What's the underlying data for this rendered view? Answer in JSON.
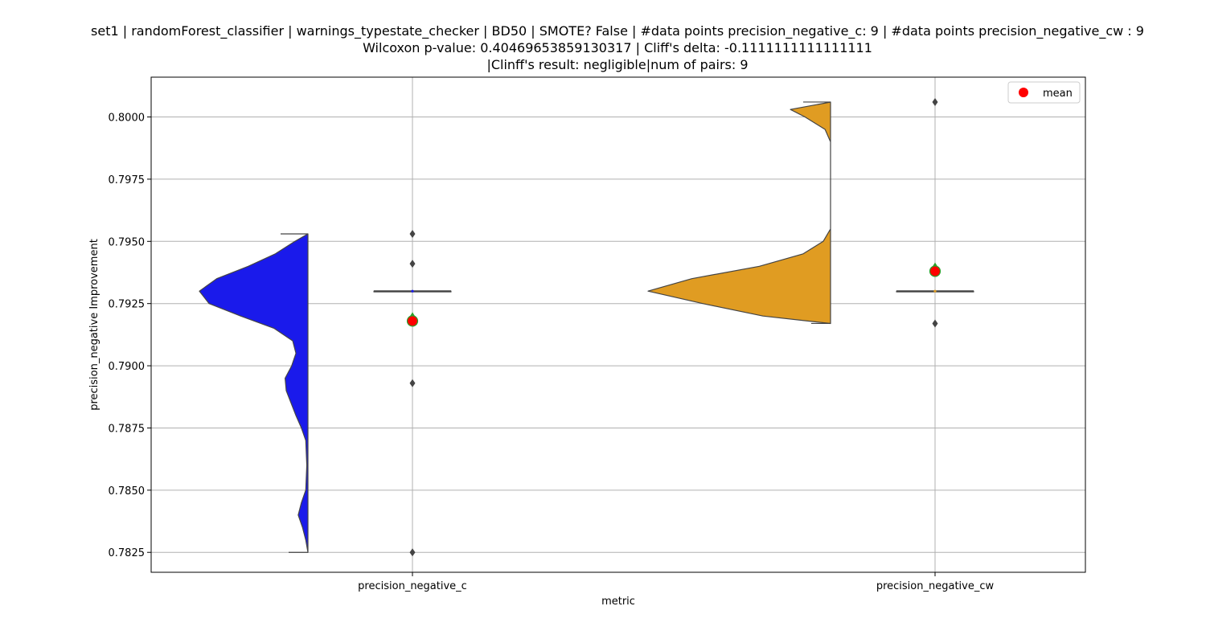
{
  "chart_data": {
    "type": "violin",
    "title_lines": [
      "set1 | randomForest_classifier | warnings_typestate_checker | BD50 | SMOTE? False | #data points precision_negative_c: 9 | #data points precision_negative_cw : 9",
      "Wilcoxon p-value: 0.40469653859130317 | Cliff's delta: -0.1111111111111111",
      "|Clinff's result: negligible|num of pairs: 9"
    ],
    "xlabel": "metric",
    "ylabel": "precision_negative Improvement",
    "categories": [
      "precision_negative_c",
      "precision_negative_cw"
    ],
    "ylim": [
      0.7817,
      0.8016
    ],
    "yticks": [
      0.7825,
      0.785,
      0.7875,
      0.79,
      0.7925,
      0.795,
      0.7975,
      0.8
    ],
    "ytick_labels": [
      "0.7825",
      "0.7850",
      "0.7875",
      "0.7900",
      "0.7925",
      "0.7950",
      "0.7975",
      "0.8000"
    ],
    "grid": true,
    "legend": {
      "position": "top-right",
      "entries": [
        "mean"
      ]
    },
    "colors": {
      "c": "#1a1aeb",
      "cw": "#e09c22",
      "mean": "#ff0000",
      "mean_edge": "#2ca02c",
      "edge": "#444444",
      "grid": "#b0b0b0"
    },
    "series": [
      {
        "category": "precision_negative_c",
        "color": "#1a1aeb",
        "outliers": [
          0.7953,
          0.7941,
          0.7893,
          0.7825
        ],
        "median": 0.793,
        "q1": 0.793,
        "q3": 0.793,
        "mean": 0.7918,
        "density": [
          [
            0.7825,
            0.0
          ],
          [
            0.783,
            0.02
          ],
          [
            0.7835,
            0.05
          ],
          [
            0.784,
            0.09
          ],
          [
            0.7845,
            0.06
          ],
          [
            0.785,
            0.02
          ],
          [
            0.786,
            0.01
          ],
          [
            0.787,
            0.02
          ],
          [
            0.7875,
            0.06
          ],
          [
            0.788,
            0.11
          ],
          [
            0.789,
            0.2
          ],
          [
            0.7895,
            0.21
          ],
          [
            0.79,
            0.15
          ],
          [
            0.7905,
            0.11
          ],
          [
            0.791,
            0.14
          ],
          [
            0.7915,
            0.31
          ],
          [
            0.792,
            0.62
          ],
          [
            0.7925,
            0.91
          ],
          [
            0.793,
            1.0
          ],
          [
            0.7935,
            0.84
          ],
          [
            0.794,
            0.55
          ],
          [
            0.7945,
            0.3
          ],
          [
            0.795,
            0.12
          ],
          [
            0.7953,
            0.0
          ]
        ]
      },
      {
        "category": "precision_negative_cw",
        "color": "#e09c22",
        "outliers": [
          0.8006,
          0.7917
        ],
        "median": 0.793,
        "q1": 0.793,
        "q3": 0.793,
        "mean": 0.7938,
        "density": [
          [
            0.7917,
            0.0
          ],
          [
            0.792,
            0.37
          ],
          [
            0.7925,
            0.7
          ],
          [
            0.793,
            1.0
          ],
          [
            0.7935,
            0.76
          ],
          [
            0.794,
            0.39
          ],
          [
            0.7945,
            0.15
          ],
          [
            0.795,
            0.04
          ],
          [
            0.7955,
            0.0
          ],
          [
            0.796,
            0.0
          ],
          [
            0.797,
            0.0
          ],
          [
            0.798,
            0.0
          ],
          [
            0.799,
            0.0
          ],
          [
            0.7995,
            0.03
          ],
          [
            0.8,
            0.14
          ],
          [
            0.8003,
            0.22
          ],
          [
            0.8006,
            0.0
          ]
        ]
      }
    ]
  }
}
